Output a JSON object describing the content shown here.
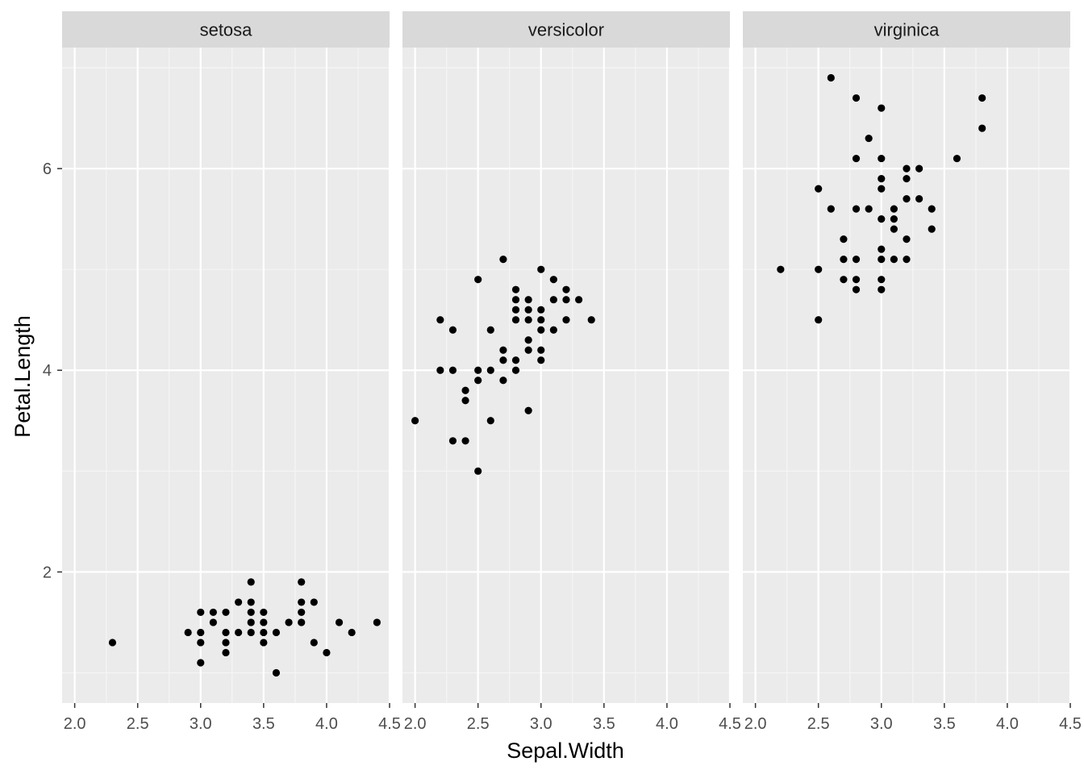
{
  "chart_data": {
    "type": "scatter",
    "xlabel": "Sepal.Width",
    "ylabel": "Petal.Length",
    "xlim": [
      1.9,
      4.5
    ],
    "ylim": [
      0.7,
      7.2
    ],
    "x_ticks": [
      "2.0",
      "2.5",
      "3.0",
      "3.5",
      "4.0",
      "4.5"
    ],
    "x_tick_values": [
      2.0,
      2.5,
      3.0,
      3.5,
      4.0,
      4.5
    ],
    "y_ticks": [
      "2",
      "4",
      "6"
    ],
    "y_tick_values": [
      2,
      4,
      6
    ],
    "grid": true,
    "panels": [
      {
        "name": "setosa",
        "points": [
          [
            2.3,
            1.3
          ],
          [
            2.9,
            1.4
          ],
          [
            3.0,
            1.6
          ],
          [
            3.0,
            1.4
          ],
          [
            3.0,
            1.3
          ],
          [
            3.0,
            1.1
          ],
          [
            3.1,
            1.6
          ],
          [
            3.1,
            1.5
          ],
          [
            3.2,
            1.6
          ],
          [
            3.2,
            1.4
          ],
          [
            3.2,
            1.3
          ],
          [
            3.2,
            1.2
          ],
          [
            3.3,
            1.7
          ],
          [
            3.3,
            1.4
          ],
          [
            3.4,
            1.9
          ],
          [
            3.4,
            1.7
          ],
          [
            3.4,
            1.6
          ],
          [
            3.4,
            1.5
          ],
          [
            3.4,
            1.4
          ],
          [
            3.5,
            1.6
          ],
          [
            3.5,
            1.5
          ],
          [
            3.5,
            1.4
          ],
          [
            3.5,
            1.3
          ],
          [
            3.6,
            1.4
          ],
          [
            3.6,
            1.0
          ],
          [
            3.7,
            1.5
          ],
          [
            3.8,
            1.9
          ],
          [
            3.8,
            1.7
          ],
          [
            3.8,
            1.6
          ],
          [
            3.8,
            1.5
          ],
          [
            3.9,
            1.7
          ],
          [
            3.9,
            1.3
          ],
          [
            4.0,
            1.2
          ],
          [
            4.1,
            1.5
          ],
          [
            4.2,
            1.4
          ],
          [
            4.4,
            1.5
          ]
        ]
      },
      {
        "name": "versicolor",
        "points": [
          [
            2.0,
            3.5
          ],
          [
            2.2,
            4.5
          ],
          [
            2.2,
            4.0
          ],
          [
            2.3,
            4.4
          ],
          [
            2.3,
            4.0
          ],
          [
            2.3,
            3.3
          ],
          [
            2.4,
            3.8
          ],
          [
            2.4,
            3.7
          ],
          [
            2.4,
            3.3
          ],
          [
            2.5,
            4.9
          ],
          [
            2.5,
            4.0
          ],
          [
            2.5,
            3.9
          ],
          [
            2.5,
            3.0
          ],
          [
            2.6,
            4.4
          ],
          [
            2.6,
            4.0
          ],
          [
            2.6,
            3.5
          ],
          [
            2.7,
            5.1
          ],
          [
            2.7,
            4.2
          ],
          [
            2.7,
            4.1
          ],
          [
            2.7,
            3.9
          ],
          [
            2.8,
            4.8
          ],
          [
            2.8,
            4.7
          ],
          [
            2.8,
            4.6
          ],
          [
            2.8,
            4.5
          ],
          [
            2.8,
            4.1
          ],
          [
            2.8,
            4.0
          ],
          [
            2.9,
            4.7
          ],
          [
            2.9,
            4.6
          ],
          [
            2.9,
            4.5
          ],
          [
            2.9,
            4.3
          ],
          [
            2.9,
            4.2
          ],
          [
            2.9,
            3.6
          ],
          [
            3.0,
            5.0
          ],
          [
            3.0,
            4.6
          ],
          [
            3.0,
            4.5
          ],
          [
            3.0,
            4.4
          ],
          [
            3.0,
            4.2
          ],
          [
            3.0,
            4.1
          ],
          [
            3.1,
            4.9
          ],
          [
            3.1,
            4.7
          ],
          [
            3.1,
            4.4
          ],
          [
            3.2,
            4.8
          ],
          [
            3.2,
            4.7
          ],
          [
            3.2,
            4.5
          ],
          [
            3.3,
            4.7
          ],
          [
            3.4,
            4.5
          ]
        ]
      },
      {
        "name": "virginica",
        "points": [
          [
            2.2,
            5.0
          ],
          [
            2.5,
            5.8
          ],
          [
            2.5,
            5.0
          ],
          [
            2.5,
            4.5
          ],
          [
            2.6,
            6.9
          ],
          [
            2.6,
            5.6
          ],
          [
            2.7,
            5.3
          ],
          [
            2.7,
            5.1
          ],
          [
            2.7,
            4.9
          ],
          [
            2.8,
            6.7
          ],
          [
            2.8,
            6.1
          ],
          [
            2.8,
            5.6
          ],
          [
            2.8,
            5.1
          ],
          [
            2.8,
            4.9
          ],
          [
            2.8,
            4.8
          ],
          [
            2.9,
            6.3
          ],
          [
            2.9,
            5.6
          ],
          [
            3.0,
            6.6
          ],
          [
            3.0,
            6.1
          ],
          [
            3.0,
            5.9
          ],
          [
            3.0,
            5.8
          ],
          [
            3.0,
            5.5
          ],
          [
            3.0,
            5.2
          ],
          [
            3.0,
            5.1
          ],
          [
            3.0,
            4.9
          ],
          [
            3.0,
            4.8
          ],
          [
            3.1,
            5.6
          ],
          [
            3.1,
            5.5
          ],
          [
            3.1,
            5.4
          ],
          [
            3.1,
            5.1
          ],
          [
            3.2,
            6.0
          ],
          [
            3.2,
            5.9
          ],
          [
            3.2,
            5.7
          ],
          [
            3.2,
            5.3
          ],
          [
            3.2,
            5.1
          ],
          [
            3.3,
            6.0
          ],
          [
            3.3,
            5.7
          ],
          [
            3.4,
            5.6
          ],
          [
            3.4,
            5.4
          ],
          [
            3.6,
            6.1
          ],
          [
            3.8,
            6.7
          ],
          [
            3.8,
            6.4
          ]
        ]
      }
    ]
  }
}
